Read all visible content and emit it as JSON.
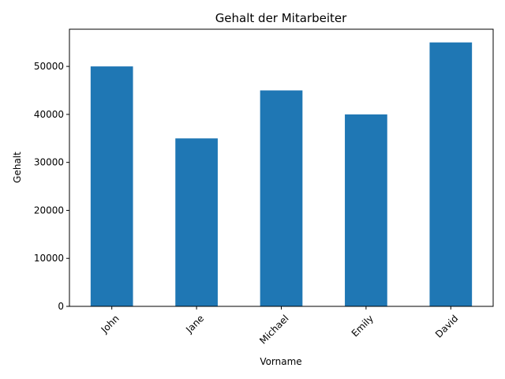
{
  "chart_data": {
    "type": "bar",
    "title": "Gehalt der Mitarbeiter",
    "xlabel": "Vorname",
    "ylabel": "Gehalt",
    "categories": [
      "John",
      "Jane",
      "Michael",
      "Emily",
      "David"
    ],
    "values": [
      50000,
      35000,
      45000,
      40000,
      55000
    ],
    "ylim": [
      0,
      57750
    ],
    "yticks": [
      0,
      10000,
      20000,
      30000,
      40000,
      50000
    ],
    "ytick_labels": [
      "0",
      "10000",
      "20000",
      "30000",
      "40000",
      "50000"
    ],
    "bar_color": "#1f77b4",
    "grid": false,
    "legend": "none"
  }
}
